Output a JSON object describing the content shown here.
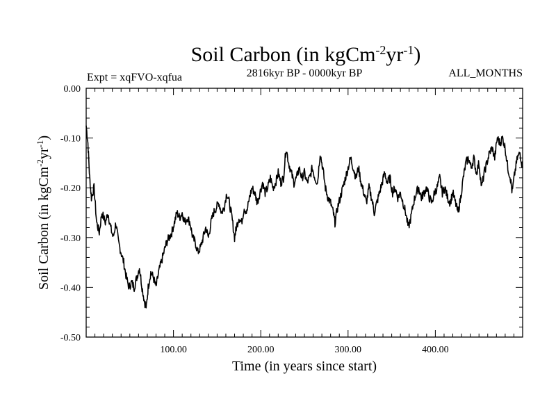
{
  "chart_data": {
    "type": "line",
    "title": "Soil Carbon (in kgCm",
    "title_sup1": "-2",
    "title_mid": "yr",
    "title_sup2": "-1",
    "title_end": ")",
    "left_label": "Expt = xqFVO-xqfua",
    "center_label": "2816kyr BP - 0000kyr BP",
    "right_label": "ALL_MONTHS",
    "xlabel": "Time (in years since start)",
    "ylabel": "Soil Carbon (in kgCm",
    "ylabel_sup1": "-2",
    "ylabel_mid": "yr",
    "ylabel_sup2": "-1",
    "ylabel_end": ")",
    "xlim": [
      0,
      500
    ],
    "ylim": [
      -0.5,
      0.0
    ],
    "xticks": [
      100,
      200,
      300,
      400
    ],
    "xtick_labels": [
      "100.00",
      "200.00",
      "300.00",
      "400.00"
    ],
    "yticks": [
      0.0,
      -0.1,
      -0.2,
      -0.3,
      -0.4,
      -0.5
    ],
    "ytick_labels": [
      "0.00",
      "-0.10",
      "-0.20",
      "-0.30",
      "-0.40",
      "-0.50"
    ],
    "series": [
      {
        "name": "Soil Carbon",
        "anchors": [
          [
            0,
            -0.075
          ],
          [
            2,
            -0.11
          ],
          [
            4,
            -0.18
          ],
          [
            6,
            -0.22
          ],
          [
            9,
            -0.2
          ],
          [
            12,
            -0.27
          ],
          [
            15,
            -0.29
          ],
          [
            18,
            -0.25
          ],
          [
            22,
            -0.27
          ],
          [
            25,
            -0.25
          ],
          [
            28,
            -0.28
          ],
          [
            31,
            -0.3
          ],
          [
            34,
            -0.27
          ],
          [
            37,
            -0.31
          ],
          [
            40,
            -0.33
          ],
          [
            43,
            -0.35
          ],
          [
            46,
            -0.38
          ],
          [
            49,
            -0.4
          ],
          [
            52,
            -0.39
          ],
          [
            55,
            -0.4
          ],
          [
            58,
            -0.38
          ],
          [
            61,
            -0.36
          ],
          [
            64,
            -0.4
          ],
          [
            67,
            -0.43
          ],
          [
            69,
            -0.44
          ],
          [
            71,
            -0.4
          ],
          [
            74,
            -0.37
          ],
          [
            77,
            -0.38
          ],
          [
            80,
            -0.4
          ],
          [
            83,
            -0.37
          ],
          [
            86,
            -0.35
          ],
          [
            89,
            -0.33
          ],
          [
            92,
            -0.31
          ],
          [
            95,
            -0.3
          ],
          [
            98,
            -0.29
          ],
          [
            101,
            -0.27
          ],
          [
            104,
            -0.25
          ],
          [
            107,
            -0.26
          ],
          [
            110,
            -0.25
          ],
          [
            113,
            -0.27
          ],
          [
            116,
            -0.26
          ],
          [
            119,
            -0.27
          ],
          [
            122,
            -0.3
          ],
          [
            125,
            -0.31
          ],
          [
            128,
            -0.33
          ],
          [
            131,
            -0.32
          ],
          [
            134,
            -0.3
          ],
          [
            137,
            -0.28
          ],
          [
            140,
            -0.3
          ],
          [
            143,
            -0.27
          ],
          [
            146,
            -0.25
          ],
          [
            149,
            -0.24
          ],
          [
            152,
            -0.23
          ],
          [
            155,
            -0.25
          ],
          [
            158,
            -0.24
          ],
          [
            161,
            -0.21
          ],
          [
            164,
            -0.23
          ],
          [
            167,
            -0.26
          ],
          [
            170,
            -0.3
          ],
          [
            172,
            -0.28
          ],
          [
            175,
            -0.26
          ],
          [
            178,
            -0.27
          ],
          [
            181,
            -0.24
          ],
          [
            184,
            -0.25
          ],
          [
            187,
            -0.22
          ],
          [
            190,
            -0.2
          ],
          [
            193,
            -0.21
          ],
          [
            196,
            -0.23
          ],
          [
            199,
            -0.21
          ],
          [
            202,
            -0.19
          ],
          [
            205,
            -0.21
          ],
          [
            208,
            -0.2
          ],
          [
            211,
            -0.18
          ],
          [
            214,
            -0.2
          ],
          [
            217,
            -0.19
          ],
          [
            220,
            -0.17
          ],
          [
            223,
            -0.19
          ],
          [
            226,
            -0.18
          ],
          [
            229,
            -0.12
          ],
          [
            232,
            -0.15
          ],
          [
            235,
            -0.17
          ],
          [
            238,
            -0.19
          ],
          [
            241,
            -0.18
          ],
          [
            244,
            -0.16
          ],
          [
            247,
            -0.18
          ],
          [
            250,
            -0.17
          ],
          [
            253,
            -0.19
          ],
          [
            256,
            -0.18
          ],
          [
            259,
            -0.16
          ],
          [
            262,
            -0.18
          ],
          [
            265,
            -0.19
          ],
          [
            268,
            -0.13
          ],
          [
            271,
            -0.16
          ],
          [
            274,
            -0.2
          ],
          [
            277,
            -0.22
          ],
          [
            280,
            -0.23
          ],
          [
            283,
            -0.25
          ],
          [
            285,
            -0.27
          ],
          [
            288,
            -0.24
          ],
          [
            291,
            -0.22
          ],
          [
            294,
            -0.2
          ],
          [
            297,
            -0.18
          ],
          [
            300,
            -0.16
          ],
          [
            303,
            -0.14
          ],
          [
            306,
            -0.16
          ],
          [
            309,
            -0.18
          ],
          [
            312,
            -0.16
          ],
          [
            315,
            -0.19
          ],
          [
            318,
            -0.21
          ],
          [
            321,
            -0.23
          ],
          [
            324,
            -0.2
          ],
          [
            327,
            -0.22
          ],
          [
            330,
            -0.25
          ],
          [
            333,
            -0.23
          ],
          [
            336,
            -0.21
          ],
          [
            339,
            -0.19
          ],
          [
            342,
            -0.17
          ],
          [
            345,
            -0.19
          ],
          [
            348,
            -0.18
          ],
          [
            351,
            -0.21
          ],
          [
            354,
            -0.2
          ],
          [
            357,
            -0.22
          ],
          [
            360,
            -0.21
          ],
          [
            363,
            -0.23
          ],
          [
            366,
            -0.25
          ],
          [
            369,
            -0.28
          ],
          [
            372,
            -0.26
          ],
          [
            375,
            -0.23
          ],
          [
            378,
            -0.21
          ],
          [
            381,
            -0.2
          ],
          [
            384,
            -0.22
          ],
          [
            387,
            -0.21
          ],
          [
            390,
            -0.2
          ],
          [
            393,
            -0.22
          ],
          [
            396,
            -0.23
          ],
          [
            399,
            -0.21
          ],
          [
            402,
            -0.2
          ],
          [
            405,
            -0.18
          ],
          [
            408,
            -0.21
          ],
          [
            411,
            -0.2
          ],
          [
            414,
            -0.22
          ],
          [
            417,
            -0.23
          ],
          [
            420,
            -0.21
          ],
          [
            423,
            -0.23
          ],
          [
            426,
            -0.25
          ],
          [
            429,
            -0.22
          ],
          [
            432,
            -0.18
          ],
          [
            435,
            -0.15
          ],
          [
            438,
            -0.14
          ],
          [
            441,
            -0.16
          ],
          [
            444,
            -0.14
          ],
          [
            447,
            -0.17
          ],
          [
            450,
            -0.15
          ],
          [
            453,
            -0.2
          ],
          [
            456,
            -0.17
          ],
          [
            459,
            -0.15
          ],
          [
            462,
            -0.13
          ],
          [
            465,
            -0.12
          ],
          [
            468,
            -0.14
          ],
          [
            471,
            -0.1
          ],
          [
            474,
            -0.11
          ],
          [
            477,
            -0.1
          ],
          [
            480,
            -0.12
          ],
          [
            483,
            -0.16
          ],
          [
            486,
            -0.18
          ],
          [
            488,
            -0.21
          ],
          [
            491,
            -0.17
          ],
          [
            494,
            -0.14
          ],
          [
            497,
            -0.13
          ],
          [
            500,
            -0.16
          ]
        ]
      }
    ]
  }
}
